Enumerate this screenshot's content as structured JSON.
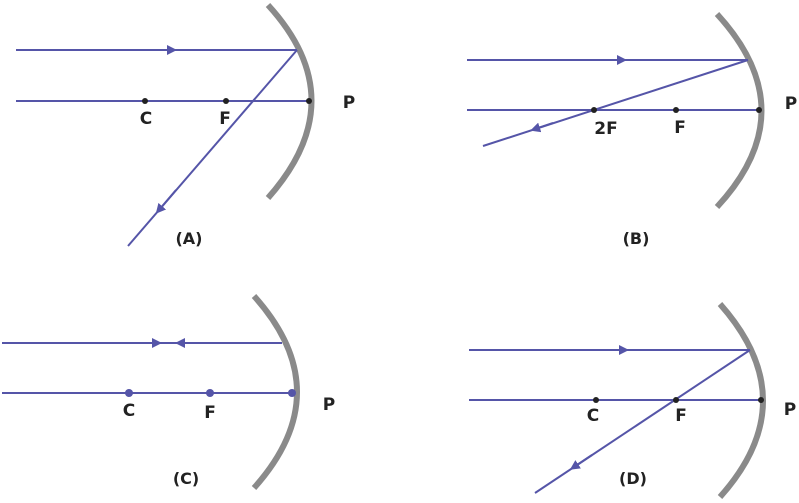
{
  "colors": {
    "ray": "#5555a8",
    "mirror": "#8a8a8a",
    "point": "#222222",
    "text": "#222222"
  },
  "panels": [
    {
      "caption": "(A)",
      "labels": {
        "C": "C",
        "F": "F",
        "P": "P"
      }
    },
    {
      "caption": "(B)",
      "labels": {
        "twoF": "2F",
        "F": "F",
        "P": "P"
      }
    },
    {
      "caption": "(C)",
      "labels": {
        "C": "C",
        "F": "F",
        "P": "P"
      }
    },
    {
      "caption": "(D)",
      "labels": {
        "C": "C",
        "F": "F",
        "P": "P"
      }
    }
  ]
}
